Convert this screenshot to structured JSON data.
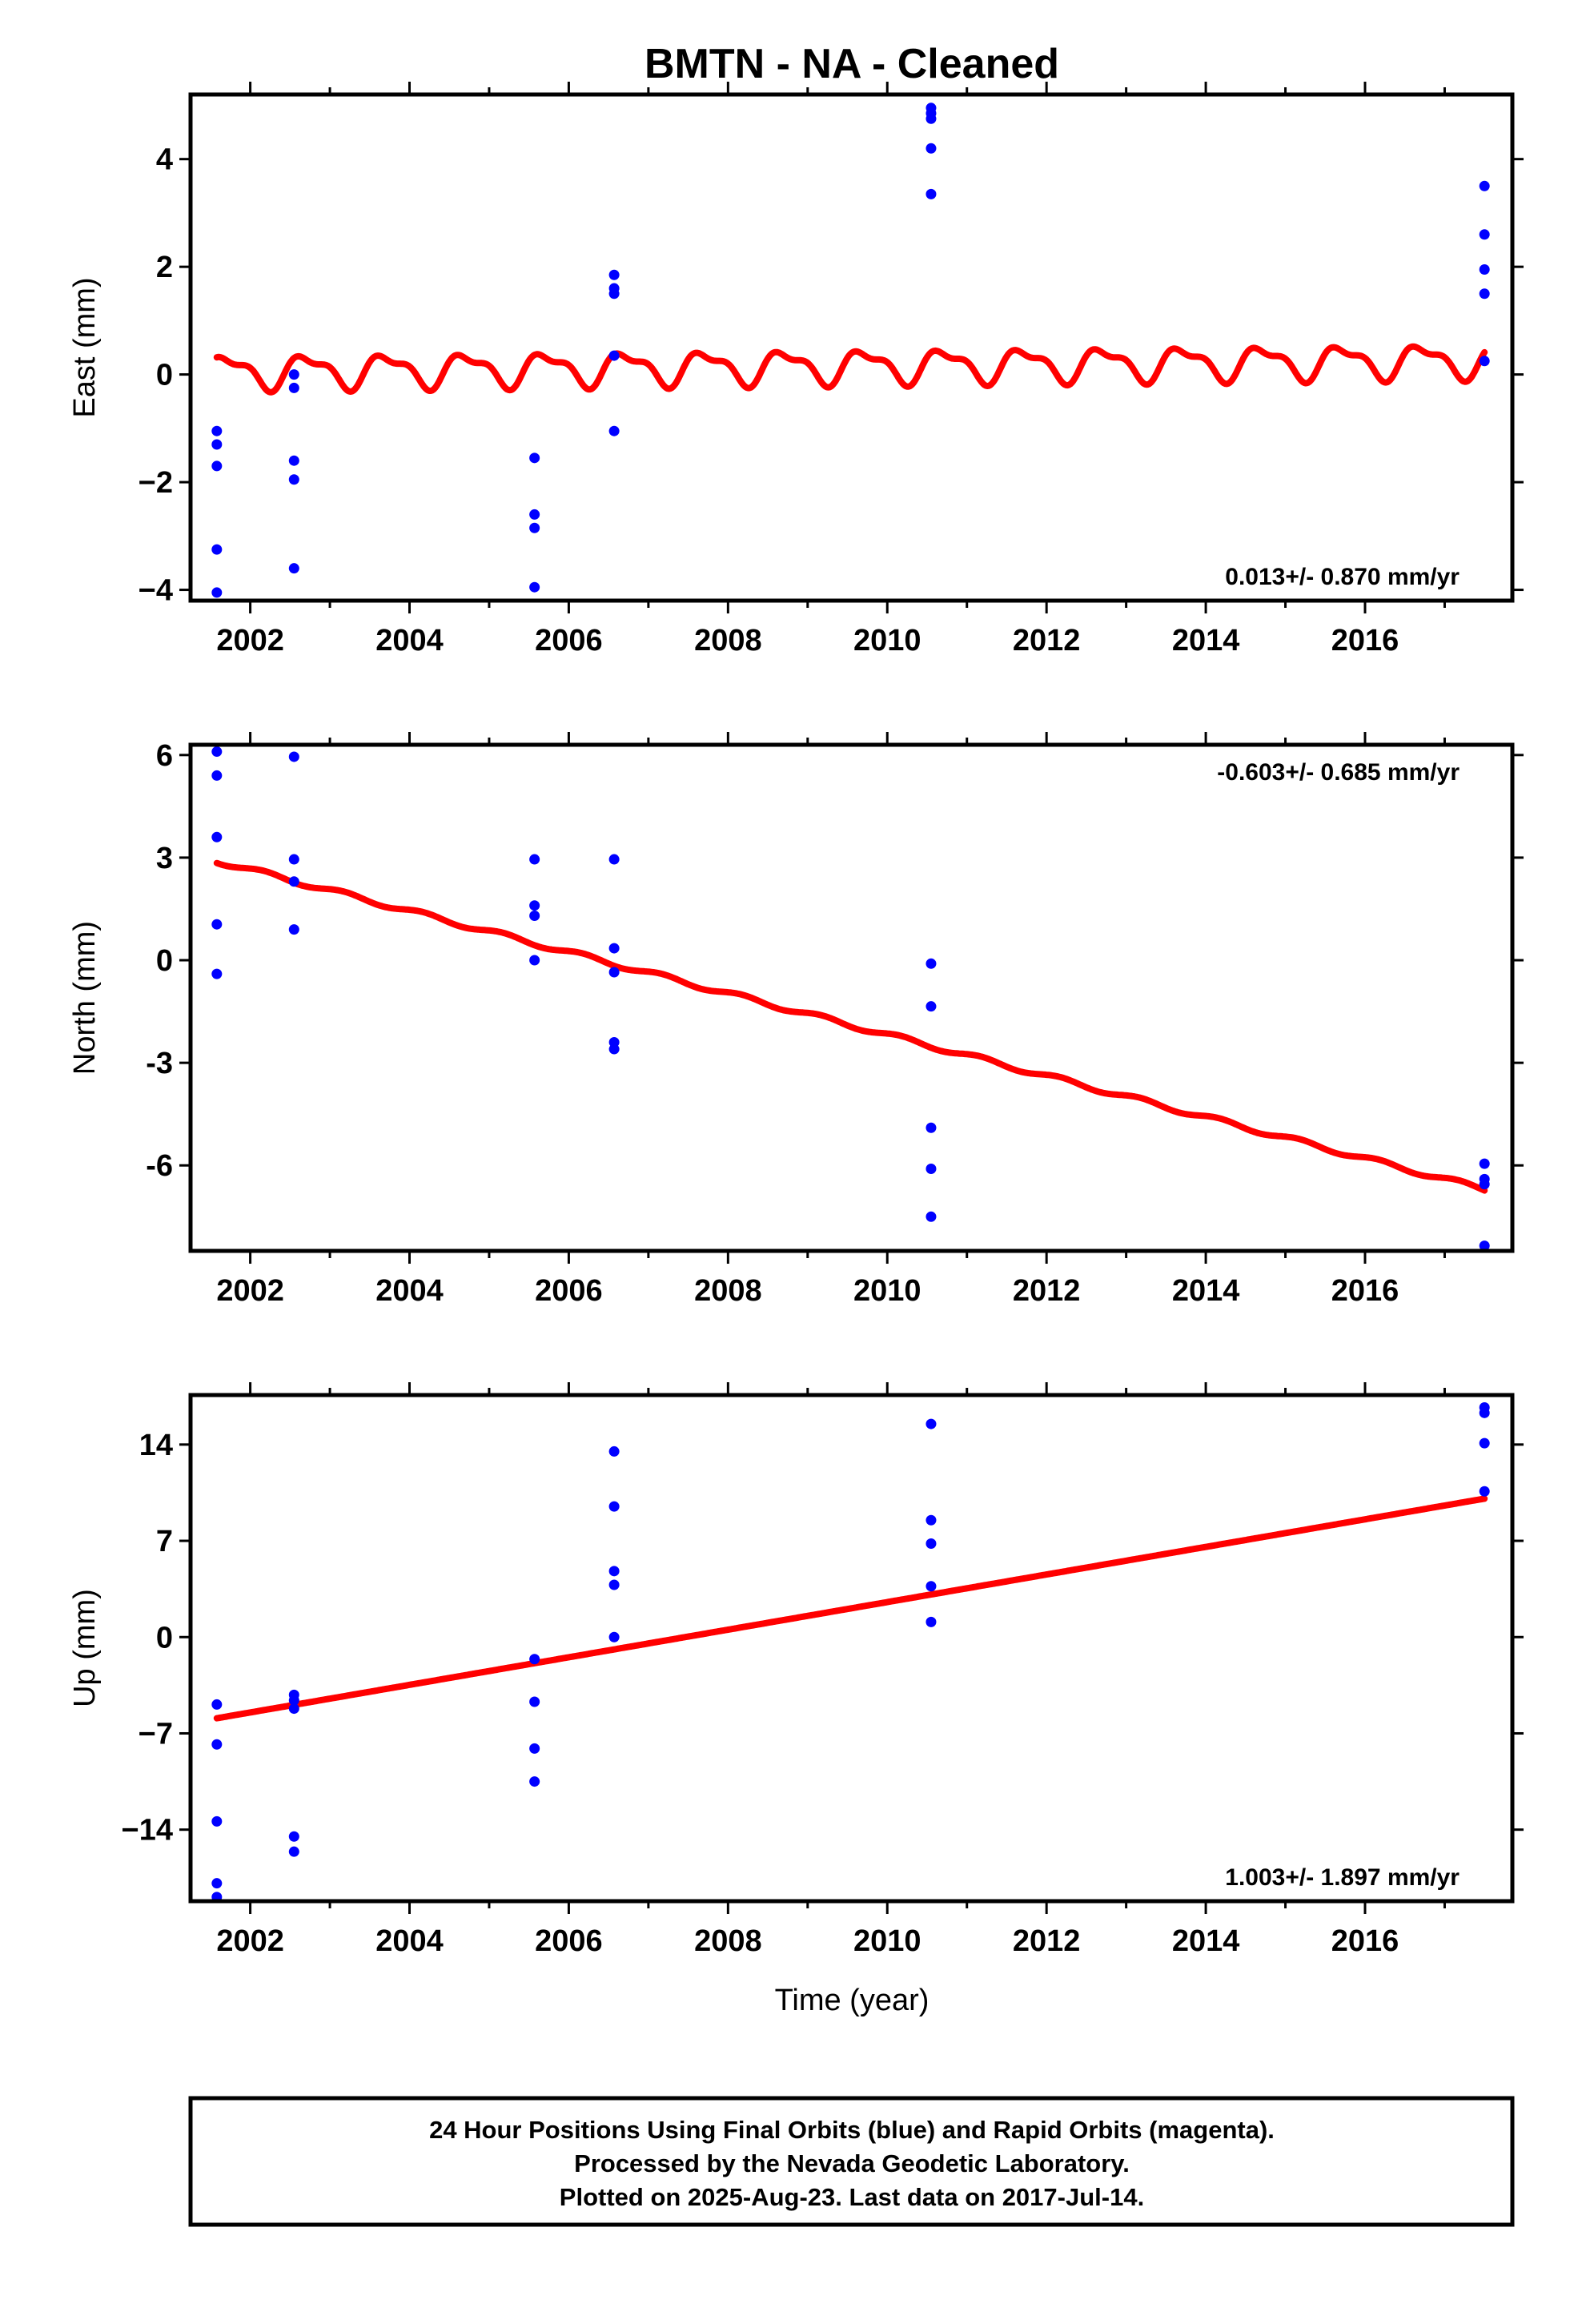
{
  "title": "BMTN  - NA - Cleaned",
  "colors": {
    "data": "#0000ff",
    "model": "#ff0000",
    "frame": "#000000"
  },
  "xlabel": "Time (year)",
  "footer": {
    "line1": "24 Hour Positions Using Final Orbits (blue) and Rapid Orbits (magenta).",
    "line2": "Processed by the Nevada Geodetic Laboratory.",
    "line3": "Plotted on 2025-Aug-23. Last data on 2017-Jul-14."
  },
  "chart_data": [
    {
      "type": "scatter",
      "ylabel": "East (mm)",
      "rate_text": "0.013+/- 0.870 mm/yr",
      "rate_position": "bottom-right",
      "xlim": [
        2001.25,
        2017.85
      ],
      "ylim": [
        -4.2,
        5.2
      ],
      "xticks": [
        2002,
        2004,
        2006,
        2008,
        2010,
        2012,
        2014,
        2016
      ],
      "yticks": [
        -4,
        -2,
        0,
        2,
        4
      ],
      "ytick_labels": [
        "−4",
        "−2",
        "0",
        "2",
        "4"
      ],
      "grid": false,
      "points": [
        [
          2001.58,
          -1.05
        ],
        [
          2001.58,
          -1.3
        ],
        [
          2001.58,
          -1.7
        ],
        [
          2001.58,
          -3.25
        ],
        [
          2001.58,
          -4.05
        ],
        [
          2002.55,
          0.0
        ],
        [
          2002.55,
          -0.25
        ],
        [
          2002.55,
          -1.6
        ],
        [
          2002.55,
          -1.95
        ],
        [
          2002.55,
          -3.6
        ],
        [
          2005.57,
          -1.55
        ],
        [
          2005.57,
          -2.6
        ],
        [
          2005.57,
          -2.85
        ],
        [
          2005.57,
          -3.95
        ],
        [
          2006.57,
          1.85
        ],
        [
          2006.57,
          1.6
        ],
        [
          2006.57,
          1.5
        ],
        [
          2006.57,
          0.35
        ],
        [
          2006.57,
          -1.05
        ],
        [
          2010.55,
          4.95
        ],
        [
          2010.55,
          4.85
        ],
        [
          2010.55,
          4.75
        ],
        [
          2010.55,
          4.2
        ],
        [
          2010.55,
          3.35
        ],
        [
          2017.5,
          3.5
        ],
        [
          2017.5,
          2.6
        ],
        [
          2017.5,
          1.95
        ],
        [
          2017.5,
          1.5
        ],
        [
          2017.5,
          0.25
        ]
      ],
      "model": {
        "t0": 2001.58,
        "t1": 2017.5,
        "offset": 0.05,
        "slope": 0.013,
        "annual_amp": 0.28,
        "annual_phase": 3.3,
        "semiannual_amp": 0.12,
        "semiannual_phase": 1.2
      }
    },
    {
      "type": "scatter",
      "ylabel": "North (mm)",
      "rate_text": "-0.603+/- 0.685 mm/yr",
      "rate_position": "top-right",
      "xlim": [
        2001.25,
        2017.85
      ],
      "ylim": [
        -8.5,
        6.3
      ],
      "xticks": [
        2002,
        2004,
        2006,
        2008,
        2010,
        2012,
        2014,
        2016
      ],
      "yticks": [
        -6,
        -3,
        0,
        3,
        6
      ],
      "ytick_labels": [
        "-6",
        "-3",
        "0",
        "3",
        "6"
      ],
      "grid": false,
      "points": [
        [
          2001.58,
          6.1
        ],
        [
          2001.58,
          5.4
        ],
        [
          2001.58,
          3.6
        ],
        [
          2001.58,
          1.05
        ],
        [
          2001.58,
          -0.4
        ],
        [
          2002.55,
          5.95
        ],
        [
          2002.55,
          2.95
        ],
        [
          2002.55,
          2.3
        ],
        [
          2002.55,
          0.9
        ],
        [
          2005.57,
          2.95
        ],
        [
          2005.57,
          1.6
        ],
        [
          2005.57,
          1.3
        ],
        [
          2005.57,
          0.0
        ],
        [
          2006.57,
          2.95
        ],
        [
          2006.57,
          0.35
        ],
        [
          2006.57,
          -0.35
        ],
        [
          2006.57,
          -2.4
        ],
        [
          2006.57,
          -2.6
        ],
        [
          2010.55,
          -0.1
        ],
        [
          2010.55,
          -1.35
        ],
        [
          2010.55,
          -4.9
        ],
        [
          2010.55,
          -6.1
        ],
        [
          2010.55,
          -7.5
        ],
        [
          2017.5,
          -5.95
        ],
        [
          2017.5,
          -6.4
        ],
        [
          2017.5,
          -6.55
        ],
        [
          2017.5,
          -8.35
        ]
      ],
      "model": {
        "t0": 2001.58,
        "t1": 2017.5,
        "offset": 2.9,
        "slope": -0.603,
        "annual_amp": 0.07,
        "annual_phase": 0.5,
        "semiannual_amp": 0.0,
        "semiannual_phase": 0.0
      }
    },
    {
      "type": "scatter",
      "ylabel": "Up (mm)",
      "rate_text": "1.003+/- 1.897 mm/yr",
      "rate_position": "bottom-right",
      "xlim": [
        2001.25,
        2017.85
      ],
      "ylim": [
        -19.2,
        17.6
      ],
      "xticks": [
        2002,
        2004,
        2006,
        2008,
        2010,
        2012,
        2014,
        2016
      ],
      "yticks": [
        -14,
        -7,
        0,
        7,
        14
      ],
      "ytick_labels": [
        "−14",
        "−7",
        "0",
        "7",
        "14"
      ],
      "grid": false,
      "points": [
        [
          2001.58,
          -4.9
        ],
        [
          2001.58,
          -7.8
        ],
        [
          2001.58,
          -13.4
        ],
        [
          2001.58,
          -17.9
        ],
        [
          2001.58,
          -18.9
        ],
        [
          2002.55,
          -4.2
        ],
        [
          2002.55,
          -4.6
        ],
        [
          2002.55,
          -5.2
        ],
        [
          2002.55,
          -14.5
        ],
        [
          2002.55,
          -15.6
        ],
        [
          2005.57,
          -1.6
        ],
        [
          2005.57,
          -4.7
        ],
        [
          2005.57,
          -8.1
        ],
        [
          2005.57,
          -10.5
        ],
        [
          2006.57,
          13.5
        ],
        [
          2006.57,
          9.5
        ],
        [
          2006.57,
          4.8
        ],
        [
          2006.57,
          3.8
        ],
        [
          2006.57,
          0.0
        ],
        [
          2010.55,
          15.5
        ],
        [
          2010.55,
          8.5
        ],
        [
          2010.55,
          6.8
        ],
        [
          2010.55,
          3.7
        ],
        [
          2010.55,
          1.1
        ],
        [
          2017.5,
          16.7
        ],
        [
          2017.5,
          16.3
        ],
        [
          2017.5,
          14.1
        ],
        [
          2017.5,
          10.6
        ]
      ],
      "model": {
        "t0": 2001.58,
        "t1": 2017.5,
        "offset": -5.9,
        "slope": 1.003,
        "annual_amp": 0.0,
        "annual_phase": 0.0,
        "semiannual_amp": 0.0,
        "semiannual_phase": 0.0
      }
    }
  ]
}
